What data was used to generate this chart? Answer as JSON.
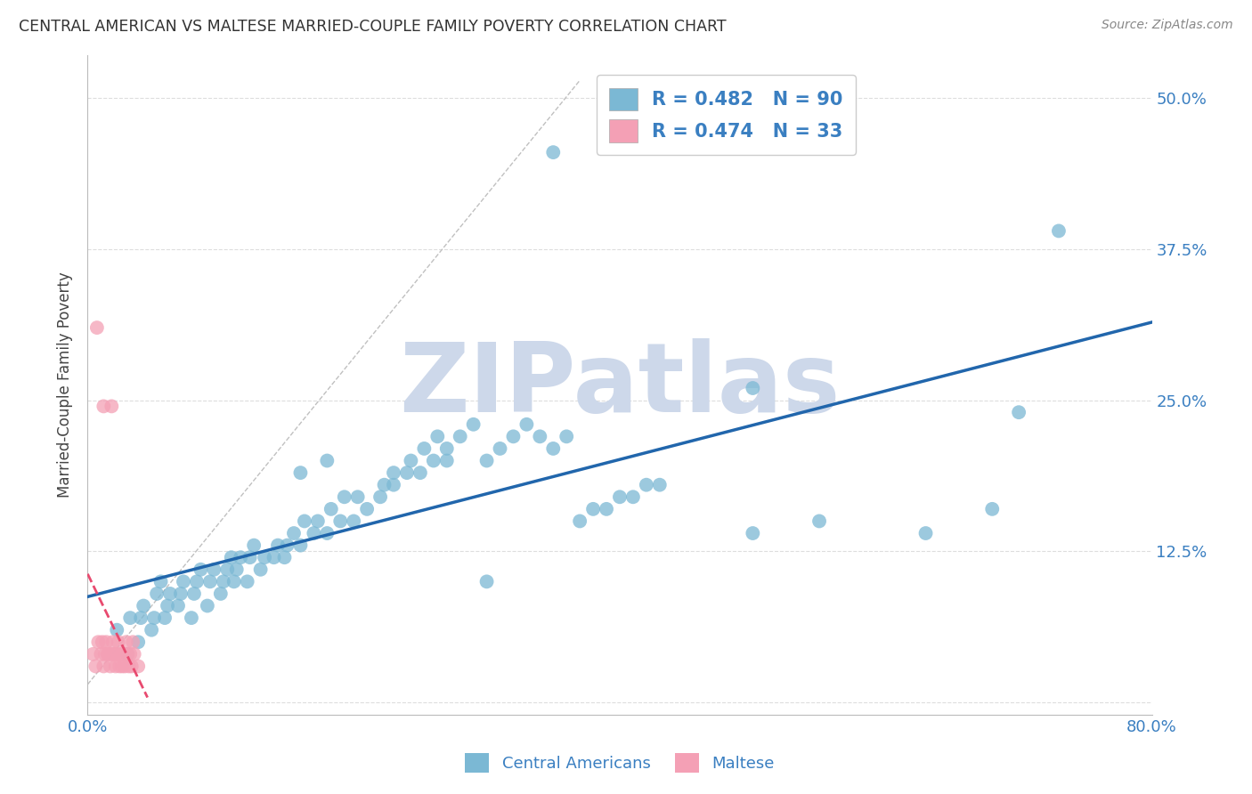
{
  "title": "CENTRAL AMERICAN VS MALTESE MARRIED-COUPLE FAMILY POVERTY CORRELATION CHART",
  "source": "Source: ZipAtlas.com",
  "ylabel": "Married-Couple Family Poverty",
  "xlim": [
    0.0,
    0.8
  ],
  "ylim": [
    -0.01,
    0.535
  ],
  "xticks": [
    0.0,
    0.1,
    0.2,
    0.3,
    0.4,
    0.5,
    0.6,
    0.7,
    0.8
  ],
  "xticklabels": [
    "0.0%",
    "",
    "",
    "",
    "",
    "",
    "",
    "",
    "80.0%"
  ],
  "yticks": [
    0.0,
    0.125,
    0.25,
    0.375,
    0.5
  ],
  "yticklabels": [
    "",
    "12.5%",
    "25.0%",
    "37.5%",
    "50.0%"
  ],
  "blue_color": "#7bb8d4",
  "pink_color": "#f4a0b5",
  "blue_line_color": "#2166ac",
  "pink_line_color": "#e84a6f",
  "grid_color": "#dddddd",
  "watermark_color": "#cdd8ea",
  "R_blue": 0.482,
  "N_blue": 90,
  "R_pink": 0.474,
  "N_pink": 33,
  "legend_label_blue": "Central Americans",
  "legend_label_pink": "Maltese",
  "blue_scatter_x": [
    0.022,
    0.03,
    0.032,
    0.038,
    0.04,
    0.042,
    0.048,
    0.05,
    0.052,
    0.055,
    0.058,
    0.06,
    0.062,
    0.068,
    0.07,
    0.072,
    0.078,
    0.08,
    0.082,
    0.085,
    0.09,
    0.092,
    0.095,
    0.1,
    0.102,
    0.105,
    0.108,
    0.11,
    0.112,
    0.115,
    0.12,
    0.122,
    0.125,
    0.13,
    0.133,
    0.14,
    0.143,
    0.148,
    0.15,
    0.155,
    0.16,
    0.163,
    0.17,
    0.173,
    0.18,
    0.183,
    0.19,
    0.193,
    0.2,
    0.203,
    0.21,
    0.22,
    0.223,
    0.23,
    0.24,
    0.243,
    0.25,
    0.253,
    0.26,
    0.263,
    0.27,
    0.28,
    0.29,
    0.3,
    0.31,
    0.32,
    0.33,
    0.34,
    0.35,
    0.36,
    0.37,
    0.38,
    0.39,
    0.4,
    0.41,
    0.42,
    0.43,
    0.5,
    0.55,
    0.68,
    0.5,
    0.63,
    0.7,
    0.73,
    0.16,
    0.18,
    0.23,
    0.27,
    0.3,
    0.35
  ],
  "blue_scatter_y": [
    0.06,
    0.04,
    0.07,
    0.05,
    0.07,
    0.08,
    0.06,
    0.07,
    0.09,
    0.1,
    0.07,
    0.08,
    0.09,
    0.08,
    0.09,
    0.1,
    0.07,
    0.09,
    0.1,
    0.11,
    0.08,
    0.1,
    0.11,
    0.09,
    0.1,
    0.11,
    0.12,
    0.1,
    0.11,
    0.12,
    0.1,
    0.12,
    0.13,
    0.11,
    0.12,
    0.12,
    0.13,
    0.12,
    0.13,
    0.14,
    0.13,
    0.15,
    0.14,
    0.15,
    0.14,
    0.16,
    0.15,
    0.17,
    0.15,
    0.17,
    0.16,
    0.17,
    0.18,
    0.18,
    0.19,
    0.2,
    0.19,
    0.21,
    0.2,
    0.22,
    0.21,
    0.22,
    0.23,
    0.2,
    0.21,
    0.22,
    0.23,
    0.22,
    0.21,
    0.22,
    0.15,
    0.16,
    0.16,
    0.17,
    0.17,
    0.18,
    0.18,
    0.14,
    0.15,
    0.16,
    0.26,
    0.14,
    0.24,
    0.39,
    0.19,
    0.2,
    0.19,
    0.2,
    0.1,
    0.455
  ],
  "pink_scatter_x": [
    0.004,
    0.006,
    0.008,
    0.01,
    0.011,
    0.012,
    0.013,
    0.014,
    0.015,
    0.016,
    0.017,
    0.018,
    0.019,
    0.02,
    0.021,
    0.022,
    0.023,
    0.024,
    0.025,
    0.026,
    0.027,
    0.028,
    0.029,
    0.03,
    0.031,
    0.032,
    0.033,
    0.034,
    0.035,
    0.038,
    0.007,
    0.012,
    0.018
  ],
  "pink_scatter_y": [
    0.04,
    0.03,
    0.05,
    0.04,
    0.05,
    0.03,
    0.04,
    0.05,
    0.04,
    0.04,
    0.03,
    0.04,
    0.05,
    0.04,
    0.03,
    0.04,
    0.05,
    0.03,
    0.04,
    0.03,
    0.04,
    0.03,
    0.05,
    0.04,
    0.03,
    0.04,
    0.03,
    0.05,
    0.04,
    0.03,
    0.31,
    0.245,
    0.245
  ]
}
